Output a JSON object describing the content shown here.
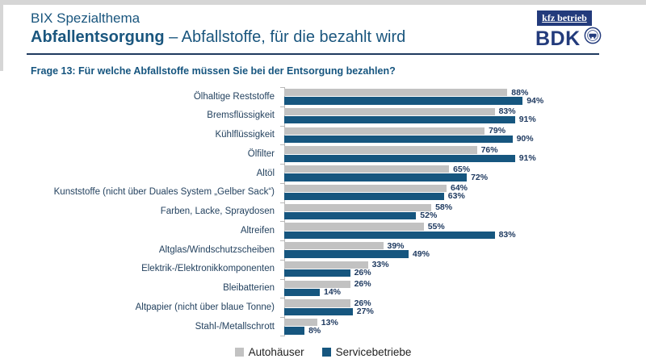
{
  "header": {
    "kicker": "BIX Spezialthema",
    "title_bold": "Abfallentsorgung",
    "title_rest": " – Abfallstoffe, für die bezahlt wird"
  },
  "logos": {
    "kfz_betrieb": "kfz betrieb",
    "bdk": "BDK"
  },
  "question": "Frage 13: Für welche Abfallstoffe müssen Sie bei der Entsorgung bezahlen?",
  "legend": {
    "autohaeuser": "Autohäuser",
    "servicebetriebe": "Servicebetriebe"
  },
  "colors": {
    "autohaeuser_gray": "#c2c2c2",
    "servicebetriebe_blue": "#16567f",
    "header_navy": "#1a567e",
    "logo_navy": "#233b7c",
    "axis_gray": "#b9b9b9",
    "value_text": "#1f3a60"
  },
  "chart_data": {
    "type": "bar",
    "orientation": "horizontal",
    "title": "Frage 13: Für welche Abfallstoffe müssen Sie bei der Entsorgung bezahlen?",
    "categories": [
      "Ölhaltige Reststoffe",
      "Bremsflüssigkeit",
      "Kühlflüssigkeit",
      "Ölfilter",
      "Altöl",
      "Kunststoffe (nicht über Duales System „Gelber Sack“)",
      "Farben, Lacke, Spraydosen",
      "Altreifen",
      "Altglas/Windschutzscheiben",
      "Elektrik-/Elektronikkomponenten",
      "Bleibatterien",
      "Altpapier (nicht über blaue Tonne)",
      "Stahl-/Metallschrott"
    ],
    "series": [
      {
        "name": "Autohäuser",
        "color": "#c2c2c2",
        "values": [
          88,
          83,
          79,
          76,
          65,
          64,
          58,
          55,
          39,
          33,
          26,
          26,
          13
        ]
      },
      {
        "name": "Servicebetriebe",
        "color": "#16567f",
        "values": [
          94,
          91,
          90,
          91,
          72,
          63,
          52,
          83,
          49,
          26,
          14,
          27,
          8
        ]
      }
    ],
    "value_suffix": "%",
    "xlim": [
      0,
      100
    ],
    "grid": false,
    "legend_position": "bottom"
  }
}
